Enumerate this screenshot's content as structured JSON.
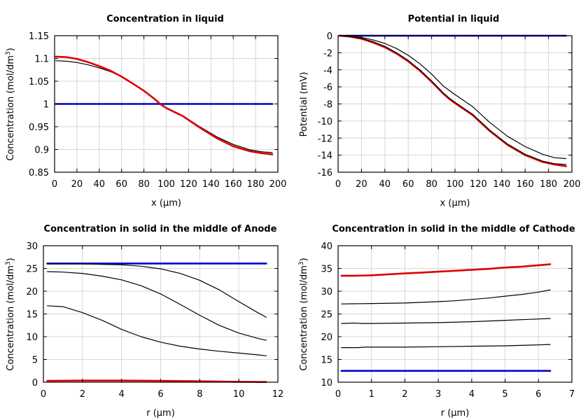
{
  "chart_data": [
    {
      "type": "line",
      "title": "Concentration in liquid",
      "xlabel": "x (μm)",
      "ylabel": "Concentration (mol/dm³)",
      "ylabel_parts": [
        "Concentration (mol/dm",
        "3",
        ")"
      ],
      "xlim": [
        0,
        200
      ],
      "ylim": [
        0.85,
        1.15
      ],
      "xticks": [
        "0",
        "20",
        "40",
        "60",
        "80",
        "100",
        "120",
        "140",
        "160",
        "180",
        "200"
      ],
      "yticks": [
        "0.85",
        "0.9",
        "0.95",
        "1",
        "1.05",
        "1.1",
        "1.15"
      ],
      "grid": true,
      "series": [
        {
          "color": "#0000cc",
          "width": 2.6,
          "x": [
            1,
            195
          ],
          "y": [
            1.0,
            1.0
          ]
        },
        {
          "color": "#000000",
          "width": 1.2,
          "x": [
            1,
            10,
            20,
            30,
            40,
            50,
            60,
            70,
            80,
            90,
            95,
            100,
            115,
            130,
            145,
            160,
            175,
            185,
            195
          ],
          "y": [
            1.095,
            1.094,
            1.091,
            1.086,
            1.079,
            1.071,
            1.06,
            1.045,
            1.028,
            1.01,
            1.0,
            0.992,
            0.974,
            0.95,
            0.928,
            0.911,
            0.899,
            0.895,
            0.893
          ]
        },
        {
          "color": "#dd0000",
          "width": 2.6,
          "x": [
            1,
            10,
            20,
            30,
            40,
            50,
            60,
            70,
            80,
            90,
            95,
            100,
            115,
            130,
            145,
            160,
            175,
            185,
            195
          ],
          "y": [
            1.104,
            1.103,
            1.099,
            1.092,
            1.083,
            1.073,
            1.06,
            1.045,
            1.029,
            1.01,
            0.999,
            0.991,
            0.973,
            0.948,
            0.925,
            0.907,
            0.896,
            0.892,
            0.889
          ]
        }
      ]
    },
    {
      "type": "line",
      "title": "Potential in liquid",
      "xlabel": "x (μm)",
      "ylabel": "Potential (mV)",
      "xlim": [
        0,
        200
      ],
      "ylim": [
        -16,
        0
      ],
      "xticks": [
        "0",
        "20",
        "40",
        "60",
        "80",
        "100",
        "120",
        "140",
        "160",
        "180",
        "200"
      ],
      "yticks": [
        "-16",
        "-14",
        "-12",
        "-10",
        "-8",
        "-6",
        "-4",
        "-2",
        "0"
      ],
      "grid": true,
      "series": [
        {
          "color": "#0000cc",
          "width": 2.6,
          "x": [
            1,
            195
          ],
          "y": [
            0,
            0
          ]
        },
        {
          "color": "#000000",
          "width": 1.2,
          "x": [
            1,
            10,
            20,
            30,
            40,
            50,
            60,
            70,
            80,
            90,
            95,
            100,
            115,
            130,
            145,
            160,
            175,
            185,
            195
          ],
          "y": [
            0,
            -0.05,
            -0.2,
            -0.5,
            -0.9,
            -1.5,
            -2.3,
            -3.3,
            -4.5,
            -5.9,
            -6.4,
            -6.9,
            -8.3,
            -10.2,
            -11.8,
            -13.0,
            -13.9,
            -14.3,
            -14.4
          ]
        },
        {
          "color": "#dd0000",
          "width": 2.6,
          "x": [
            1,
            10,
            20,
            30,
            40,
            50,
            60,
            70,
            80,
            90,
            95,
            100,
            115,
            130,
            145,
            160,
            175,
            185,
            195
          ],
          "y": [
            0,
            -0.1,
            -0.35,
            -0.8,
            -1.35,
            -2.1,
            -3.0,
            -4.1,
            -5.4,
            -6.8,
            -7.4,
            -7.9,
            -9.3,
            -11.2,
            -12.8,
            -14.0,
            -14.8,
            -15.1,
            -15.3
          ]
        },
        {
          "color": "#000000",
          "width": 1.2,
          "x": [
            1,
            10,
            20,
            30,
            40,
            50,
            60,
            70,
            80,
            90,
            95,
            100,
            115,
            130,
            145,
            160,
            175,
            185,
            195
          ],
          "y": [
            0,
            -0.08,
            -0.3,
            -0.7,
            -1.25,
            -2.0,
            -2.9,
            -4.0,
            -5.3,
            -6.7,
            -7.3,
            -7.8,
            -9.2,
            -11.1,
            -12.7,
            -13.9,
            -14.7,
            -15.0,
            -15.1
          ]
        }
      ]
    },
    {
      "type": "line",
      "title": "Concentration in solid in the middle of Anode",
      "xlabel": "r (μm)",
      "ylabel": "Concentration (mol/dm³)",
      "ylabel_parts": [
        "Concentration (mol/dm",
        "3",
        ")"
      ],
      "xlim": [
        0,
        12
      ],
      "ylim": [
        0,
        30
      ],
      "xticks": [
        "0",
        "2",
        "4",
        "6",
        "8",
        "10",
        "12"
      ],
      "yticks": [
        "0",
        "5",
        "10",
        "15",
        "20",
        "25",
        "30"
      ],
      "grid": true,
      "series": [
        {
          "color": "#0000cc",
          "width": 2.6,
          "x": [
            0.2,
            11.4
          ],
          "y": [
            26.1,
            26.1
          ]
        },
        {
          "color": "#000000",
          "width": 1.2,
          "x": [
            0.2,
            1,
            2,
            3,
            4,
            5,
            6,
            7,
            8,
            9,
            10,
            11,
            11.4
          ],
          "y": [
            26.0,
            26.0,
            26.0,
            25.9,
            25.8,
            25.5,
            24.9,
            23.9,
            22.4,
            20.3,
            17.7,
            15.2,
            14.3
          ]
        },
        {
          "color": "#000000",
          "width": 1.2,
          "x": [
            0.2,
            1,
            2,
            3,
            4,
            5,
            6,
            7,
            8,
            9,
            10,
            11,
            11.4
          ],
          "y": [
            24.3,
            24.2,
            23.9,
            23.3,
            22.5,
            21.2,
            19.4,
            17.1,
            14.7,
            12.5,
            10.8,
            9.6,
            9.2
          ]
        },
        {
          "color": "#000000",
          "width": 1.2,
          "x": [
            0.2,
            1,
            2,
            3,
            4,
            5,
            6,
            7,
            8,
            9,
            10,
            11,
            11.4
          ],
          "y": [
            16.8,
            16.6,
            15.3,
            13.6,
            11.6,
            10.0,
            8.8,
            7.9,
            7.3,
            6.8,
            6.4,
            6.0,
            5.8
          ]
        },
        {
          "color": "#dd0000",
          "width": 2.6,
          "x": [
            0.2,
            2,
            4,
            6,
            8,
            10,
            11.4
          ],
          "y": [
            0.3,
            0.35,
            0.35,
            0.3,
            0.2,
            0.1,
            0.05
          ]
        }
      ]
    },
    {
      "type": "line",
      "title": "Concentration in solid in the middle of Cathode",
      "xlabel": "r (μm)",
      "ylabel": "Concentration (mol/dm³)",
      "ylabel_parts": [
        "Concentration (mol/dm",
        "3",
        ")"
      ],
      "xlim": [
        0,
        7
      ],
      "ylim": [
        10,
        40
      ],
      "xticks": [
        "0",
        "1",
        "2",
        "3",
        "4",
        "5",
        "6",
        "7"
      ],
      "yticks": [
        "10",
        "15",
        "20",
        "25",
        "30",
        "35",
        "40"
      ],
      "grid": true,
      "series": [
        {
          "color": "#dd0000",
          "width": 2.6,
          "x": [
            0.1,
            0.5,
            1,
            1.5,
            2,
            2.5,
            3,
            3.5,
            4,
            4.5,
            5,
            5.5,
            6,
            6.35
          ],
          "y": [
            33.4,
            33.4,
            33.5,
            33.7,
            33.9,
            34.1,
            34.3,
            34.5,
            34.7,
            34.9,
            35.2,
            35.4,
            35.7,
            35.9
          ]
        },
        {
          "color": "#000000",
          "width": 1.2,
          "x": [
            0.1,
            1,
            2,
            3,
            3.5,
            4,
            4.5,
            5,
            5.5,
            6,
            6.35
          ],
          "y": [
            27.2,
            27.3,
            27.4,
            27.7,
            27.9,
            28.2,
            28.5,
            28.9,
            29.3,
            29.8,
            30.3
          ]
        },
        {
          "color": "#000000",
          "width": 1.2,
          "x": [
            0.1,
            0.5,
            0.7,
            1,
            2,
            3,
            4,
            5,
            6,
            6.35
          ],
          "y": [
            22.9,
            23.0,
            22.9,
            22.9,
            23.0,
            23.1,
            23.3,
            23.6,
            23.9,
            24.0
          ]
        },
        {
          "color": "#000000",
          "width": 1.2,
          "x": [
            0.1,
            0.6,
            0.8,
            1,
            2,
            3,
            4,
            5,
            6,
            6.35
          ],
          "y": [
            17.6,
            17.6,
            17.7,
            17.7,
            17.7,
            17.8,
            17.9,
            18.0,
            18.2,
            18.3
          ]
        },
        {
          "color": "#0000cc",
          "width": 2.6,
          "x": [
            0.1,
            6.35
          ],
          "y": [
            12.5,
            12.5
          ]
        }
      ]
    }
  ]
}
